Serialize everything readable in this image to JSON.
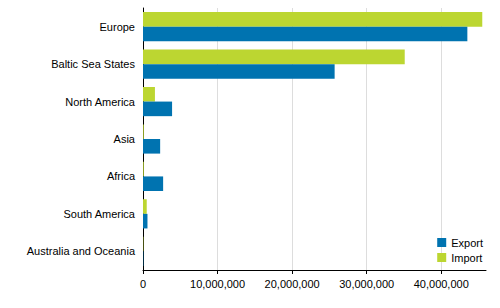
{
  "chart_data": {
    "type": "bar",
    "orientation": "horizontal",
    "categories": [
      "Europe",
      "Baltic Sea States",
      "North America",
      "Asia",
      "Africa",
      "South America",
      "Australia and Oceania"
    ],
    "series": [
      {
        "name": "Import",
        "color": "#bcd631",
        "values": [
          45500000,
          35100000,
          1600000,
          100000,
          100000,
          500000,
          50000
        ]
      },
      {
        "name": "Export",
        "color": "#0073b0",
        "values": [
          43500000,
          25700000,
          3900000,
          2300000,
          2700000,
          600000,
          50000
        ]
      }
    ],
    "xlim": [
      0,
      46000000
    ],
    "xticks": [
      0,
      {
        "value": 10000000,
        "label": "10,000,000"
      },
      {
        "value": 20000000,
        "label": "20,000,000"
      },
      {
        "value": 30000000,
        "label": "30,000,000"
      },
      {
        "value": 40000000,
        "label": "40,000,000"
      }
    ],
    "grid": true,
    "legend": "bottom-right"
  }
}
